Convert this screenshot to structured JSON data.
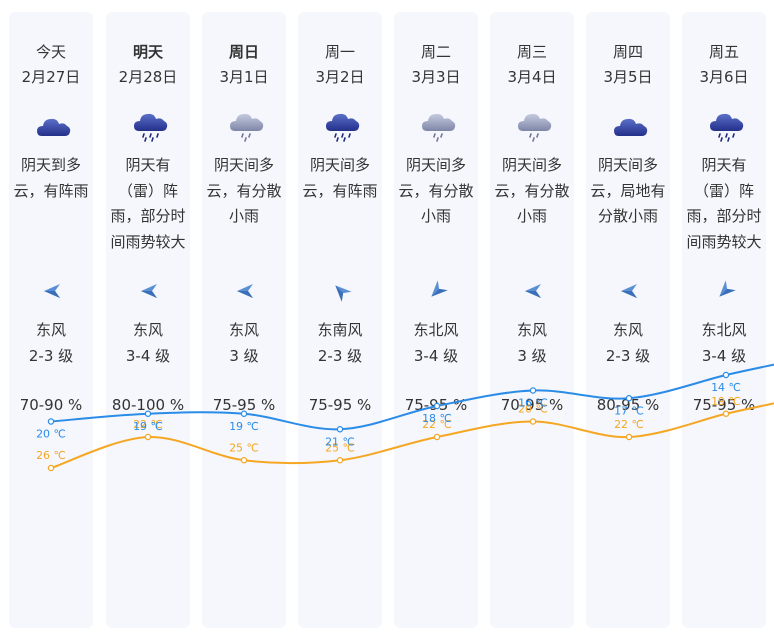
{
  "days": [
    {
      "day": "今天",
      "date": "2月27日",
      "bold": false,
      "icon": "cloud-icon",
      "desc": [
        "阴天到多",
        "云，有阵雨"
      ],
      "wind_dir": "东风",
      "wind_level": "2-3 级",
      "wind_icon": "arrow-left-icon",
      "humidity": "70-90 %",
      "high": "26 ℃",
      "low": "20 ℃"
    },
    {
      "day": "明天",
      "date": "2月28日",
      "bold": true,
      "icon": "cloud-rain-icon",
      "desc": [
        "阴天有",
        "（雷）阵",
        "雨，部分时",
        "间雨势较大"
      ],
      "wind_dir": "东风",
      "wind_level": "3-4 级",
      "wind_icon": "arrow-left-icon",
      "humidity": "80-100 %",
      "high": "22 ℃",
      "low": "19 ℃"
    },
    {
      "day": "周日",
      "date": "3月1日",
      "bold": true,
      "icon": "light-rain-icon",
      "desc": [
        "阴天间多",
        "云，有分散",
        "小雨"
      ],
      "wind_dir": "东风",
      "wind_level": "3 级",
      "wind_icon": "arrow-left-icon",
      "humidity": "75-95 %",
      "high": "25 ℃",
      "low": "19 ℃"
    },
    {
      "day": "周一",
      "date": "3月2日",
      "bold": false,
      "icon": "cloud-rain-icon",
      "desc": [
        "阴天间多",
        "云，有阵雨"
      ],
      "wind_dir": "东南风",
      "wind_level": "2-3 级",
      "wind_icon": "arrow-upleft-icon",
      "humidity": "75-95 %",
      "high": "25 ℃",
      "low": "21 ℃"
    },
    {
      "day": "周二",
      "date": "3月3日",
      "bold": false,
      "icon": "light-rain-icon",
      "desc": [
        "阴天间多",
        "云，有分散",
        "小雨"
      ],
      "wind_dir": "东北风",
      "wind_level": "3-4 级",
      "wind_icon": "arrow-downleft-icon",
      "humidity": "75-95 %",
      "high": "22 ℃",
      "low": "18 ℃"
    },
    {
      "day": "周三",
      "date": "3月4日",
      "bold": false,
      "icon": "light-rain-icon",
      "desc": [
        "阴天间多",
        "云，有分散",
        "小雨"
      ],
      "wind_dir": "东风",
      "wind_level": "3 级",
      "wind_icon": "arrow-left-icon",
      "humidity": "70-95 %",
      "high": "20 ℃",
      "low": "16 ℃"
    },
    {
      "day": "周四",
      "date": "3月5日",
      "bold": false,
      "icon": "cloud-icon",
      "desc": [
        "阴天间多",
        "云，局地有",
        "分散小雨"
      ],
      "wind_dir": "东风",
      "wind_level": "2-3 级",
      "wind_icon": "arrow-left-icon",
      "humidity": "80-95 %",
      "high": "22 ℃",
      "low": "17 ℃"
    },
    {
      "day": "周五",
      "date": "3月6日",
      "bold": false,
      "icon": "cloud-rain-icon",
      "desc": [
        "阴天有",
        "（雷）阵",
        "雨，部分时",
        "间雨势较大"
      ],
      "wind_dir": "东北风",
      "wind_level": "3-4 级",
      "wind_icon": "arrow-downleft-icon",
      "humidity": "75-95 %",
      "high": "19 ℃",
      "low": "14 ℃"
    }
  ],
  "colors": {
    "high": "#f5a623",
    "low": "#2b8ce8",
    "card": "#f5f7fc",
    "text": "#333333"
  },
  "chart_data": {
    "type": "line",
    "categories": [
      "今天",
      "明天",
      "周日",
      "周一",
      "周二",
      "周三",
      "周四",
      "周五"
    ],
    "series": [
      {
        "values": [
          26,
          22,
          25,
          25,
          22,
          20,
          22,
          19
        ],
        "color": "#f5a623"
      },
      {
        "values": [
          20,
          19,
          19,
          21,
          18,
          16,
          17,
          14
        ],
        "color": "#2b8ce8"
      }
    ],
    "unit": "℃"
  }
}
